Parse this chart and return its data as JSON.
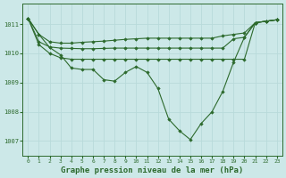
{
  "bg_color": "#cce8e8",
  "grid_color": "#b8dada",
  "line_color": "#2d6a2d",
  "marker_color": "#2d6a2d",
  "xlabel": "Graphe pression niveau de la mer (hPa)",
  "xlabel_fontsize": 6.5,
  "ylim": [
    1006.5,
    1011.7
  ],
  "xlim": [
    -0.5,
    23.5
  ],
  "yticks": [
    1007,
    1008,
    1009,
    1010,
    1011
  ],
  "xticks": [
    0,
    1,
    2,
    3,
    4,
    5,
    6,
    7,
    8,
    9,
    10,
    11,
    12,
    13,
    14,
    15,
    16,
    17,
    18,
    19,
    20,
    21,
    22,
    23
  ],
  "series": [
    {
      "x": [
        0,
        1,
        2,
        3,
        4,
        5,
        6,
        7,
        8,
        9,
        10,
        11,
        12,
        13,
        14,
        15,
        16,
        17,
        18,
        19,
        20,
        21,
        22,
        23
      ],
      "y": [
        1011.2,
        1010.65,
        1010.2,
        1009.95,
        1009.5,
        1009.45,
        1009.45,
        1009.1,
        1009.05,
        1009.35,
        1009.55,
        1009.35,
        1008.8,
        1007.75,
        1007.35,
        1007.05,
        1007.6,
        1008.0,
        1008.7,
        1009.7,
        1010.55,
        1011.05,
        1011.1,
        1011.15
      ]
    },
    {
      "x": [
        0,
        1,
        2,
        3,
        4,
        5,
        6,
        7,
        8,
        9,
        10,
        11,
        12,
        13,
        14,
        15,
        16,
        17,
        18,
        19,
        20,
        21,
        22,
        23
      ],
      "y": [
        1011.2,
        1010.65,
        1010.4,
        1010.35,
        1010.35,
        1010.38,
        1010.4,
        1010.42,
        1010.45,
        1010.48,
        1010.5,
        1010.52,
        1010.52,
        1010.52,
        1010.52,
        1010.52,
        1010.52,
        1010.52,
        1010.6,
        1010.65,
        1010.7,
        1011.05,
        1011.1,
        1011.15
      ]
    },
    {
      "x": [
        0,
        1,
        2,
        3,
        4,
        5,
        6,
        7,
        8,
        9,
        10,
        11,
        12,
        13,
        14,
        15,
        16,
        17,
        18,
        19,
        20,
        21,
        22,
        23
      ],
      "y": [
        1011.2,
        1010.4,
        1010.22,
        1010.18,
        1010.17,
        1010.16,
        1010.16,
        1010.17,
        1010.18,
        1010.18,
        1010.18,
        1010.18,
        1010.18,
        1010.18,
        1010.18,
        1010.18,
        1010.18,
        1010.18,
        1010.18,
        1010.5,
        1010.55,
        1011.05,
        1011.1,
        1011.15
      ]
    },
    {
      "x": [
        0,
        1,
        2,
        3,
        4,
        5,
        6,
        7,
        8,
        9,
        10,
        11,
        12,
        13,
        14,
        15,
        16,
        17,
        18,
        19,
        20,
        21,
        22,
        23
      ],
      "y": [
        1011.2,
        1010.3,
        1010.0,
        1009.85,
        1009.8,
        1009.8,
        1009.8,
        1009.8,
        1009.8,
        1009.8,
        1009.8,
        1009.8,
        1009.8,
        1009.8,
        1009.8,
        1009.8,
        1009.8,
        1009.8,
        1009.8,
        1009.8,
        1009.8,
        1011.05,
        1011.1,
        1011.15
      ]
    }
  ]
}
